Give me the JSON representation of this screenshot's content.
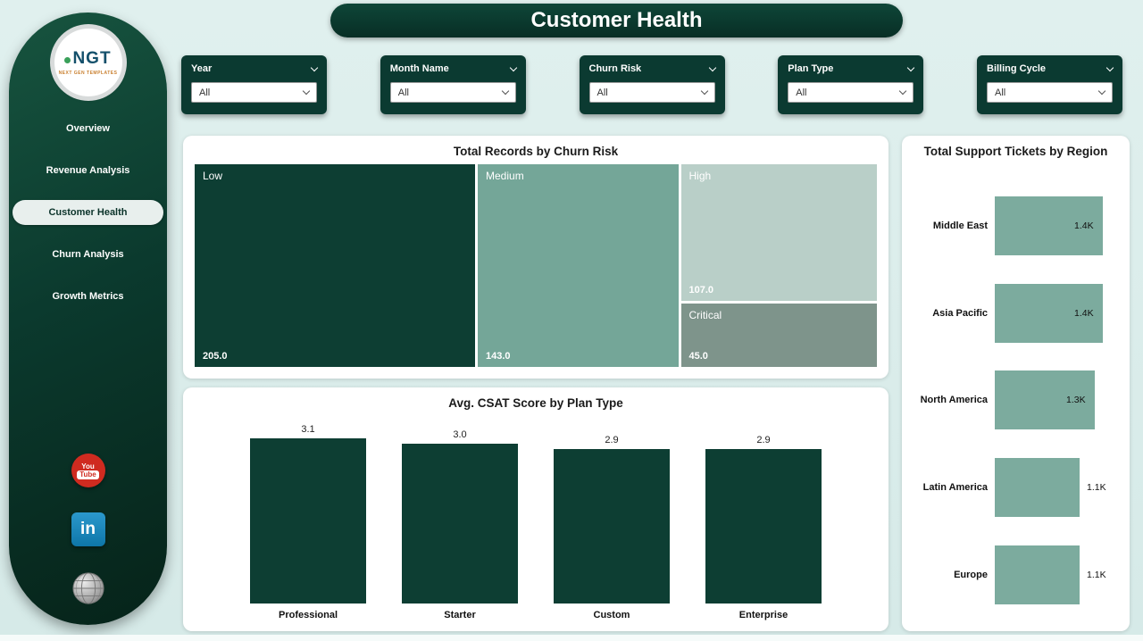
{
  "page": {
    "title": "Customer Health"
  },
  "sidebar": {
    "logo_text": "NGT",
    "logo_subtext": "NEXT GEN TEMPLATES",
    "items": [
      {
        "label": "Overview",
        "active": false
      },
      {
        "label": "Revenue Analysis",
        "active": false
      },
      {
        "label": "Customer Health",
        "active": true
      },
      {
        "label": "Churn Analysis",
        "active": false
      },
      {
        "label": "Growth Metrics",
        "active": false
      }
    ],
    "social": [
      {
        "name": "youtube",
        "line1": "You",
        "line2": "Tube"
      },
      {
        "name": "linkedin",
        "label": "in"
      },
      {
        "name": "website"
      }
    ]
  },
  "filters": [
    {
      "label": "Year",
      "value": "All"
    },
    {
      "label": "Month Name",
      "value": "All"
    },
    {
      "label": "Churn Risk",
      "value": "All"
    },
    {
      "label": "Plan Type",
      "value": "All"
    },
    {
      "label": "Billing Cycle",
      "value": "All"
    }
  ],
  "chart_data": [
    {
      "type": "treemap",
      "title": "Total Records by Churn Risk",
      "categories": [
        "Low",
        "Medium",
        "High",
        "Critical"
      ],
      "values": [
        205.0,
        143.0,
        107.0,
        45.0
      ],
      "values_display": [
        "205.0",
        "143.0",
        "107.0",
        "45.0"
      ],
      "colors": [
        "#0d3e33",
        "#74a698",
        "#b9cfc8",
        "#7e948b"
      ]
    },
    {
      "type": "bar",
      "title": "Avg. CSAT Score by Plan Type",
      "categories": [
        "Professional",
        "Starter",
        "Custom",
        "Enterprise"
      ],
      "values": [
        3.1,
        3.0,
        2.9,
        2.9
      ],
      "values_display": [
        "3.1",
        "3.0",
        "2.9",
        "2.9"
      ],
      "bar_color": "#0d3e33",
      "ylim": [
        0,
        3.1
      ]
    },
    {
      "type": "bar-horizontal",
      "title": "Total Support Tickets by Region",
      "categories": [
        "Middle East",
        "Asia Pacific",
        "North America",
        "Latin America",
        "Europe"
      ],
      "values": [
        1400,
        1400,
        1300,
        1100,
        1100
      ],
      "values_display": [
        "1.4K",
        "1.4K",
        "1.3K",
        "1.1K",
        "1.1K"
      ],
      "bar_color": "#7cab9e",
      "xlim": [
        0,
        1400
      ]
    }
  ],
  "theme": {
    "dark_green": "#0b3a31",
    "background": "#dceeec",
    "card_bg": "#ffffff"
  }
}
